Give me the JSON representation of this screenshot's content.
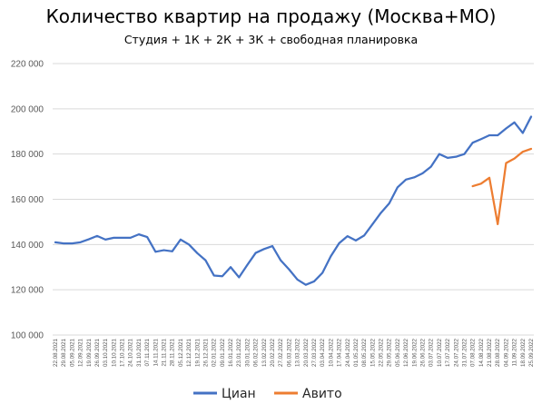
{
  "chart_data": {
    "type": "line",
    "title": "Количество квартир на продажу (Москва+МО)",
    "subtitle": "Студия + 1К + 2К + 3К + свободная планировка",
    "xlabel": "",
    "ylabel": "",
    "ylim": [
      100000,
      220000
    ],
    "yticks": [
      "100 000",
      "120 000",
      "140 000",
      "160 000",
      "180 000",
      "200 000",
      "220 000"
    ],
    "ytick_values": [
      100000,
      120000,
      140000,
      160000,
      180000,
      200000,
      220000
    ],
    "grid": true,
    "legend_position": "bottom",
    "x_labels": [
      "22.08.2021",
      "29.08.2021",
      "05.09.2021",
      "12.09.2021",
      "19.09.2021",
      "26.09.2021",
      "03.10.2021",
      "10.10.2021",
      "17.10.2021",
      "24.10.2021",
      "31.10.2021",
      "07.11.2021",
      "14.11.2021",
      "21.11.2021",
      "28.11.2021",
      "05.12.2021",
      "12.12.2021",
      "19.12.2021",
      "26.12.2021",
      "02.01.2022",
      "09.01.2022",
      "16.01.2022",
      "23.01.2022",
      "30.01.2022",
      "06.02.2022",
      "13.02.2022",
      "20.02.2022",
      "27.02.2022",
      "06.03.2022",
      "13.03.2022",
      "20.03.2022",
      "27.03.2022",
      "03.04.2022",
      "10.04.2022",
      "17.04.2022",
      "24.04.2022",
      "01.05.2022",
      "08.05.2022",
      "15.05.2022",
      "22.05.2022",
      "29.05.2022",
      "05.06.2022",
      "12.06.2022",
      "19.06.2022",
      "26.06.2022",
      "03.07.2022",
      "10.07.2022",
      "17.07.2022",
      "24.07.2022",
      "31.07.2022",
      "07.08.2022",
      "14.08.2022",
      "21.08.2022",
      "28.08.2022",
      "04.09.2022",
      "11.09.2022",
      "18.09.2022",
      "25.09.2022"
    ],
    "series": [
      {
        "name": "Циан",
        "color": "#4472C4",
        "values": [
          141000,
          140500,
          140500,
          141000,
          142300,
          143800,
          142200,
          143000,
          143000,
          143000,
          144500,
          143300,
          136800,
          137500,
          137000,
          142200,
          140000,
          136200,
          133000,
          126300,
          126000,
          130000,
          125500,
          131000,
          136300,
          138000,
          139300,
          133000,
          129000,
          124500,
          122200,
          123700,
          127500,
          134800,
          140600,
          143700,
          141800,
          144000,
          149000,
          154000,
          158200,
          165300,
          168700,
          169700,
          171500,
          174400,
          180000,
          178300,
          178800,
          180000,
          185000,
          186600,
          188300,
          188300,
          191300,
          194000,
          189300,
          196500
        ]
      },
      {
        "name": "Авито",
        "color": "#ED7D31",
        "values": [
          null,
          null,
          null,
          null,
          null,
          null,
          null,
          null,
          null,
          null,
          null,
          null,
          null,
          null,
          null,
          null,
          null,
          null,
          null,
          null,
          null,
          null,
          null,
          null,
          null,
          null,
          null,
          null,
          null,
          null,
          null,
          null,
          null,
          null,
          null,
          null,
          null,
          null,
          null,
          null,
          null,
          null,
          null,
          null,
          null,
          null,
          null,
          null,
          null,
          null,
          165800,
          166900,
          169500,
          149000,
          176000,
          178000,
          181000,
          182300
        ]
      }
    ]
  }
}
